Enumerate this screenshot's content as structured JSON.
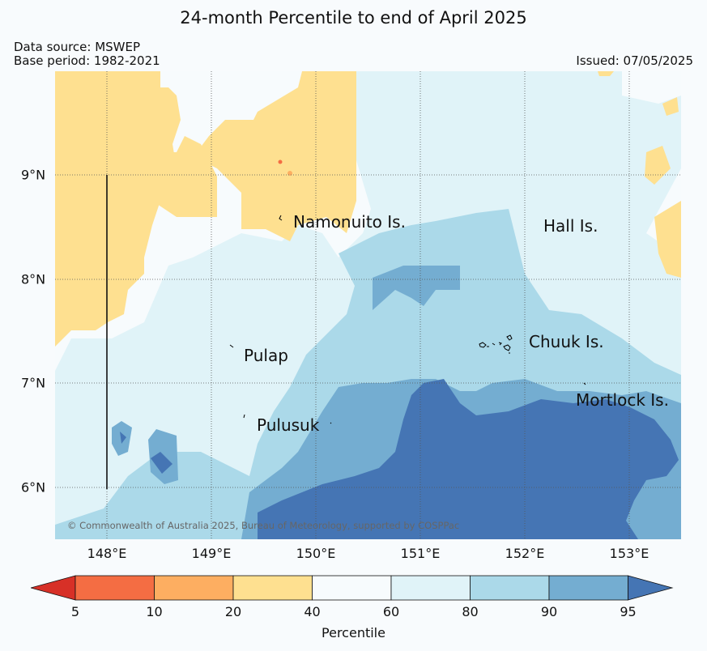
{
  "header": {
    "title": "24-month Percentile to end of April 2025",
    "data_source": "Data source: MSWEP",
    "base_period": "Base period: 1982-2021",
    "issued": "Issued: 07/05/2025"
  },
  "map": {
    "lon_ticks": [
      "148°E",
      "149°E",
      "150°E",
      "151°E",
      "152°E",
      "153°E"
    ],
    "lat_ticks": [
      "9°N",
      "8°N",
      "7°N",
      "6°N"
    ],
    "places": [
      {
        "name": "Namonuito Is."
      },
      {
        "name": "Hall Is."
      },
      {
        "name": "Chuuk Is."
      },
      {
        "name": "Pulap"
      },
      {
        "name": "Mortlock Is."
      },
      {
        "name": "Pulusuk"
      }
    ],
    "copyright": "© Commonwealth of Australia 2025, Bureau of Meteorology, supported by COSPPac"
  },
  "colorbar": {
    "label": "Percentile",
    "ticks": [
      "5",
      "10",
      "20",
      "40",
      "60",
      "80",
      "90",
      "95"
    ],
    "colors": {
      "below_5": "#d73027",
      "p5_10": "#f46d43",
      "p10_20": "#fdae61",
      "p20_40": "#fee090",
      "p40_60": "#f7fbfd",
      "p60_80": "#e0f3f8",
      "p80_90": "#abd9e9",
      "p90_95": "#74add1",
      "above_95": "#4575b4"
    }
  }
}
